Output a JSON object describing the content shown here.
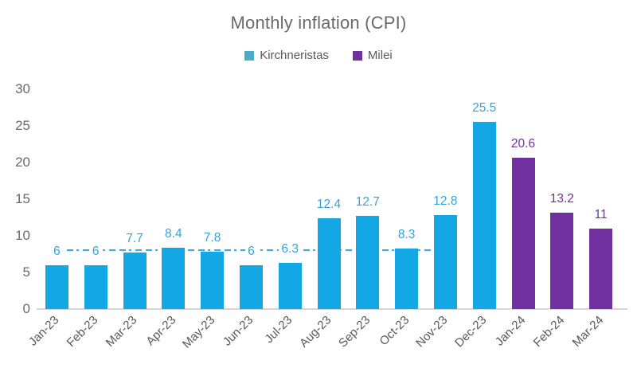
{
  "chart_data": {
    "type": "bar",
    "title": "Monthly inflation (CPI)",
    "categories": [
      "Jan-23",
      "Feb-23",
      "Mar-23",
      "Apr-23",
      "May-23",
      "Jun-23",
      "Jul-23",
      "Aug-23",
      "Sep-23",
      "Oct-23",
      "Nov-23",
      "Dec-23",
      "Jan-24",
      "Feb-24",
      "Mar-24"
    ],
    "series": [
      {
        "name": "Kirchneristas",
        "color": "#14a7e6",
        "legend_color": "#4bacc6",
        "label_color": "#2fa5de",
        "values": [
          6,
          6,
          7.7,
          8.4,
          7.8,
          6,
          6.3,
          12.4,
          12.7,
          8.3,
          12.8,
          25.5,
          null,
          null,
          null
        ]
      },
      {
        "name": "Milei",
        "color": "#7030a0",
        "legend_color": "#7030a0",
        "label_color": "#7030a0",
        "values": [
          null,
          null,
          null,
          null,
          null,
          null,
          null,
          null,
          null,
          null,
          null,
          null,
          20.6,
          13.2,
          11
        ]
      }
    ],
    "ylim": [
      0,
      30
    ],
    "yticks": [
      0,
      5,
      10,
      15,
      20,
      25,
      30
    ],
    "grid": false,
    "legend_position": "top",
    "reference_line": {
      "style": "dash-dot",
      "color": "#3bace2",
      "value": 8,
      "span_categories": [
        "Jan-23",
        "Nov-23"
      ]
    },
    "axis_line_color": "#d6d6d6",
    "text_color": "#595959",
    "title_color": "#6a6a6a"
  }
}
